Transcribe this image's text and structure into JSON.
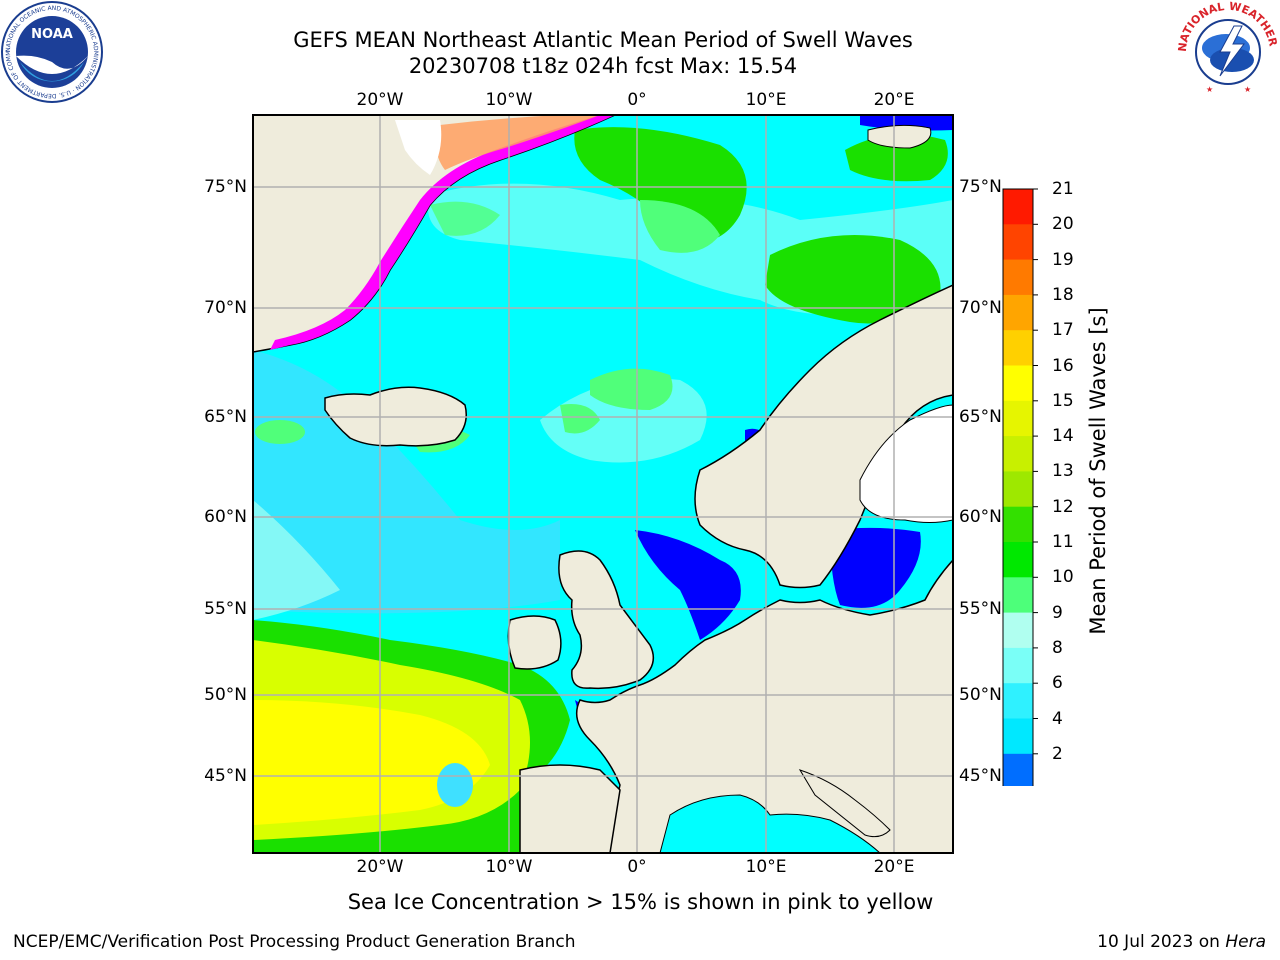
{
  "title": {
    "line1": "GEFS MEAN Northeast Atlantic Mean Period of Swell Waves",
    "line2": "20230708 t18z 024h fcst   Max: 15.54"
  },
  "map": {
    "lon_labels": [
      "20°W",
      "10°W",
      "0°",
      "10°E",
      "20°E"
    ],
    "lat_labels": [
      "75°N",
      "70°N",
      "65°N",
      "60°N",
      "55°N",
      "50°N",
      "45°N"
    ],
    "ocean_colors": [
      "#00ffff",
      "#3fe0ff",
      "#a6fff2",
      "#50ff7a",
      "#1ae000",
      "#d8ff00",
      "#ffff00",
      "#0000ff",
      "#ff00ff"
    ],
    "land_color": "#efecdc"
  },
  "colorbar": {
    "title": "Mean Period of Swell Waves [s]",
    "ticks": [
      "2",
      "4",
      "6",
      "8",
      "9",
      "10",
      "11",
      "12",
      "13",
      "14",
      "15",
      "16",
      "17",
      "18",
      "19",
      "20",
      "21"
    ],
    "colors": [
      "#006eff",
      "#00e8ff",
      "#2ff1ff",
      "#7afff7",
      "#b0fff0",
      "#4dff7a",
      "#00e800",
      "#33e000",
      "#9ee800",
      "#c8f000",
      "#e6f500",
      "#ffff00",
      "#ffd000",
      "#ffa500",
      "#ff7a00",
      "#ff4400",
      "#ff1a00"
    ]
  },
  "note": "Sea Ice Concentration > 15% is shown in pink to yellow",
  "footer": {
    "left": "NCEP/EMC/Verification Post Processing Product Generation Branch",
    "right_prefix": "10 Jul 2023 on ",
    "right_host": "Hera"
  },
  "logos": {
    "noaa_text": "NOAA",
    "noaa_ring": "NATIONAL OCEANIC AND ATMOSPHERIC ADMINISTRATION · U.S. DEPARTMENT OF COMMERCE ·",
    "nws_ring": "NATIONAL WEATHER SERVICE"
  }
}
